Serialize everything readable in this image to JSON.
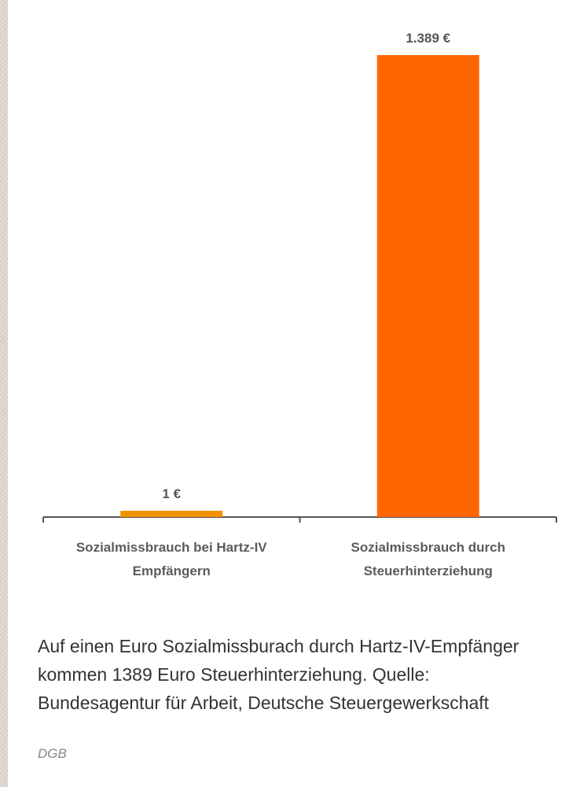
{
  "chart_data": {
    "type": "bar",
    "categories": [
      [
        "Sozialmissbrauch bei Hartz-IV",
        "Empfängern"
      ],
      [
        "Sozialmissbrauch durch",
        "Steuerhinterziehung"
      ]
    ],
    "values": [
      1,
      1389
    ],
    "value_labels": [
      "1 €",
      "1.389 €"
    ],
    "bar_colors": [
      "#f39200",
      "#ff6600"
    ],
    "axis_color": "#555555",
    "ylim": [
      0,
      1389
    ],
    "grid": false
  },
  "caption": {
    "text": "Auf einen Euro Sozialmissburach durch Hartz-IV-Empfänger kommen 1389 Euro Steuerhinterziehung. Quelle: Bundesagentur für Arbeit, Deutsche Steuergewerkschaft",
    "credit": "DGB"
  }
}
